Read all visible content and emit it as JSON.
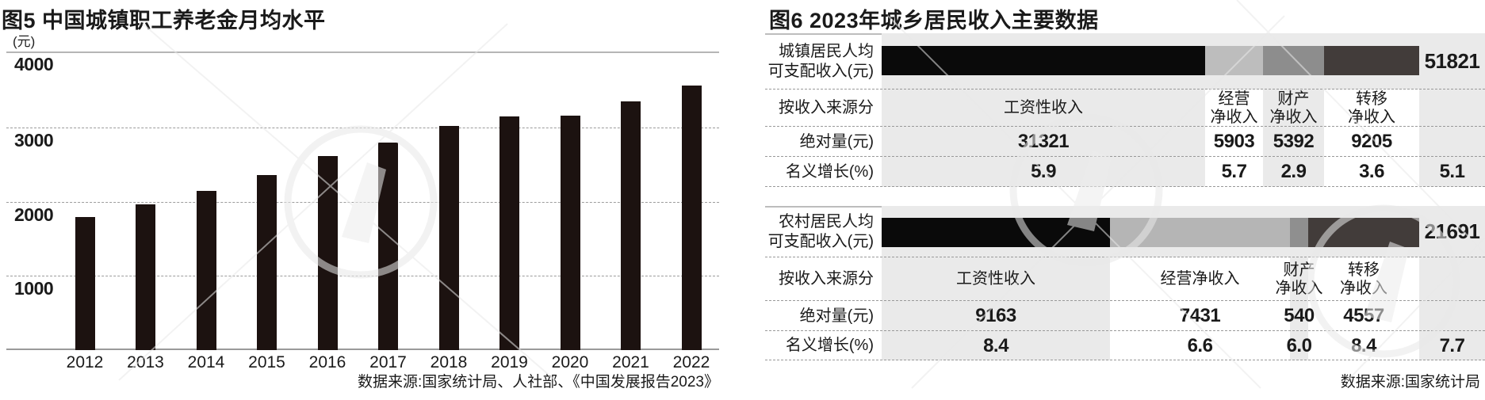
{
  "colors": {
    "section_bg": "#eaeaea",
    "left_bar": "#1c1210",
    "seg_black": "#0a0a0a",
    "seg_light_gray": "#bdbdbd",
    "seg_mid_gray": "#8d8d8d",
    "seg_dark_gray": "#423c3a",
    "dashed_rule": "#999999",
    "solid_rule": "#b5b5b5"
  },
  "chart_data": [
    {
      "id": "fig5",
      "type": "bar",
      "title": "图5 中国城镇职工养老金月均水平",
      "unit": "(元)",
      "categories": [
        "2012",
        "2013",
        "2014",
        "2015",
        "2016",
        "2017",
        "2018",
        "2019",
        "2020",
        "2021",
        "2022"
      ],
      "values": [
        1780,
        1950,
        2130,
        2350,
        2600,
        2780,
        3000,
        3130,
        3140,
        3330,
        3540
      ],
      "ylim": [
        0,
        4000
      ],
      "yticks": [
        4000,
        3000,
        2000,
        1000
      ],
      "grid": "horizontal-dashed",
      "legend": "none",
      "source": "数据来源:国家统计局、人社部、《中国发展报告2023》"
    },
    {
      "id": "fig6",
      "type": "table",
      "title": "图6 2023年城乡居民收入主要数据",
      "source": "数据来源:国家统计局",
      "row_headers": {
        "source_split": "按收入来源分",
        "absolute": "绝对量(元)",
        "growth": "名义增长(%)"
      },
      "sections": [
        {
          "key": "urban",
          "label_lines": [
            "城镇居民人均",
            "可支配收入(元)"
          ],
          "total": "51821",
          "total_growth": "5.1",
          "columns": [
            {
              "name": "工资性收入",
              "header_lines": [
                "工资性收入"
              ],
              "absolute": "31321",
              "growth": "5.9",
              "segment_color": "#0a0a0a",
              "band": "gray"
            },
            {
              "name": "经营净收入",
              "header_lines": [
                "经营",
                "净收入"
              ],
              "absolute": "5903",
              "growth": "5.7",
              "segment_color": "#bdbdbd",
              "band": "white"
            },
            {
              "name": "财产净收入",
              "header_lines": [
                "财产",
                "净收入"
              ],
              "absolute": "5392",
              "growth": "2.9",
              "segment_color": "#8d8d8d",
              "band": "gray"
            },
            {
              "name": "转移净收入",
              "header_lines": [
                "转移",
                "净收入"
              ],
              "absolute": "9205",
              "growth": "3.6",
              "segment_color": "#423c3a",
              "band": "white"
            }
          ]
        },
        {
          "key": "rural",
          "label_lines": [
            "农村居民人均",
            "可支配收入(元)"
          ],
          "total": "21691",
          "total_growth": "7.7",
          "columns": [
            {
              "name": "工资性收入",
              "header_lines": [
                "工资性收入"
              ],
              "absolute": "9163",
              "growth": "8.4",
              "segment_color": "#0a0a0a",
              "band": "gray"
            },
            {
              "name": "经营净收入",
              "header_lines": [
                "经营净收入"
              ],
              "absolute": "7431",
              "growth": "6.6",
              "segment_color": "#b5b5b5",
              "band": "white"
            },
            {
              "name": "财产净收入",
              "header_lines": [
                "财产",
                "净收入"
              ],
              "absolute": "540",
              "growth": "6.0",
              "segment_color": "#8f8f8f",
              "band": "gray"
            },
            {
              "name": "转移净收入",
              "header_lines": [
                "转移",
                "净收入"
              ],
              "absolute": "4557",
              "growth": "8.4",
              "segment_color": "#423c3a",
              "band": "white"
            }
          ]
        }
      ]
    }
  ]
}
